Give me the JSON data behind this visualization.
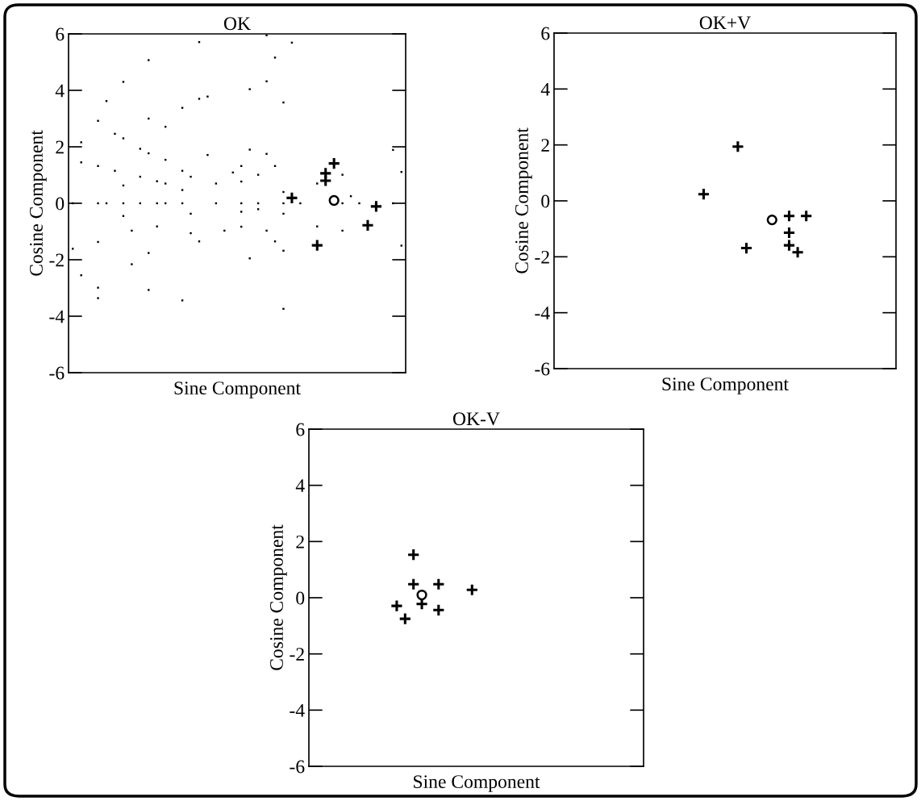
{
  "chart_data": [
    {
      "type": "scatter",
      "title": "OK",
      "xlabel": "Sine Component",
      "ylabel": "Cosine Component",
      "categories": [
        null,
        null,
        null,
        null,
        null,
        null,
        null,
        null,
        null,
        null,
        null,
        null,
        null,
        null,
        null,
        null,
        null,
        null,
        null,
        null,
        null,
        null,
        null,
        null,
        null,
        null,
        null,
        null,
        null,
        null,
        null,
        null,
        null,
        null,
        null,
        null,
        null,
        null,
        null,
        null
      ],
      "ylim": [
        -6,
        6
      ],
      "yticks": [
        -6,
        -4,
        -2,
        0,
        2,
        4,
        6
      ],
      "tick_labels": "y",
      "series": [
        {
          "color": "#000000",
          "marker": "square",
          "values": [
            0,
            2.16,
            null,
            0,
            0,
            2.46,
            0,
            -0.97,
            0,
            5.07,
            0,
            0,
            null,
            0,
            0.94,
            5.71,
            3.78,
            0,
            -0.97,
            1.09,
            0,
            4.04,
            0,
            5.95,
            5.16,
            0,
            5.69,
            0,
            null,
            0.7,
            null,
            null,
            0,
            0.25,
            0,
            null,
            null,
            null,
            0,
            1.11
          ]
        },
        {
          "color": "#000000",
          "marker": "square",
          "values": [
            -1.61,
            1.45,
            null,
            2.92,
            3.62,
            1.15,
            4.3,
            -2.16,
            1.93,
            3.0,
            0.78,
            2.71,
            null,
            3.38,
            -0.37,
            3.7,
            1.71,
            0.7,
            null,
            null,
            1.32,
            1.9,
            1.01,
            4.32,
            1.32,
            3.57,
            null,
            null,
            null,
            -0.82,
            null,
            null,
            1.01,
            null,
            null,
            null,
            null,
            null,
            1.89,
            -1.5
          ]
        },
        {
          "color": "#000000",
          "marker": "square",
          "values": [
            null,
            -2.55,
            null,
            1.32,
            null,
            null,
            2.3,
            null,
            0.94,
            1.77,
            -0.82,
            1.54,
            null,
            1.15,
            -1.06,
            -1.35,
            null,
            null,
            null,
            null,
            0.77,
            -1.95,
            -0.21,
            1.75,
            -1.35,
            0.4,
            null,
            null,
            null,
            null,
            null,
            null,
            -0.97,
            null,
            null,
            null,
            null,
            null,
            null,
            null
          ]
        },
        {
          "color": "#000000",
          "marker": "square",
          "values": [
            null,
            null,
            null,
            -1.37,
            null,
            null,
            0.63,
            null,
            null,
            -1.76,
            null,
            0.7,
            null,
            0.47,
            null,
            null,
            null,
            null,
            null,
            null,
            -0.3,
            null,
            null,
            -0.97,
            null,
            -0.37,
            null,
            null,
            null,
            null,
            null,
            null,
            null,
            null,
            null,
            null,
            null,
            null,
            null,
            null
          ]
        },
        {
          "color": "#000000",
          "marker": "square",
          "values": [
            null,
            null,
            null,
            -2.99,
            null,
            null,
            -0.45,
            null,
            null,
            -3.07,
            null,
            null,
            null,
            -3.44,
            null,
            null,
            null,
            null,
            null,
            null,
            -0.83,
            null,
            null,
            null,
            null,
            -1.68,
            null,
            null,
            null,
            null,
            null,
            null,
            null,
            null,
            null,
            null,
            null,
            null,
            null,
            null
          ]
        },
        {
          "color": "#000000",
          "marker": "square",
          "values": [
            null,
            null,
            null,
            -3.36,
            null,
            null,
            null,
            null,
            null,
            null,
            null,
            null,
            null,
            null,
            null,
            null,
            null,
            null,
            null,
            null,
            null,
            null,
            null,
            null,
            null,
            -3.74,
            null,
            null,
            null,
            null,
            null,
            null,
            null,
            null,
            null,
            null,
            null,
            null,
            null,
            null
          ]
        },
        {
          "color": "#000000",
          "marker": "cross",
          "values": [
            null,
            null,
            null,
            null,
            null,
            null,
            null,
            null,
            null,
            null,
            null,
            null,
            null,
            null,
            null,
            null,
            null,
            null,
            null,
            null,
            null,
            null,
            null,
            null,
            null,
            null,
            0.19,
            null,
            null,
            -1.49,
            1.06,
            1.41,
            null,
            null,
            null,
            -0.78,
            -0.11,
            null,
            null,
            null
          ]
        },
        {
          "color": "#000000",
          "marker": "cross",
          "values": [
            null,
            null,
            null,
            null,
            null,
            null,
            null,
            null,
            null,
            null,
            null,
            null,
            null,
            null,
            null,
            null,
            null,
            null,
            null,
            null,
            null,
            null,
            null,
            null,
            null,
            null,
            null,
            null,
            null,
            null,
            0.8,
            null,
            null,
            null,
            null,
            null,
            null,
            null,
            null,
            null
          ]
        },
        {
          "color": "#000000",
          "marker": "circle",
          "values": [
            null,
            null,
            null,
            null,
            null,
            null,
            null,
            null,
            null,
            null,
            null,
            null,
            null,
            null,
            null,
            null,
            null,
            null,
            null,
            null,
            null,
            null,
            null,
            null,
            null,
            null,
            null,
            null,
            null,
            null,
            null,
            0.1,
            null,
            null,
            null,
            null,
            null,
            null,
            null,
            null
          ]
        }
      ]
    },
    {
      "type": "scatter",
      "title": "OK+V",
      "xlabel": "Sine Component",
      "ylabel": "Cosine Component",
      "categories": [
        null,
        null,
        null,
        null,
        null,
        null,
        null,
        null,
        null,
        null,
        null,
        null,
        null,
        null,
        null,
        null,
        null,
        null,
        null,
        null,
        null,
        null,
        null,
        null,
        null,
        null,
        null,
        null,
        null,
        null,
        null,
        null,
        null,
        null,
        null,
        null,
        null,
        null,
        null,
        null
      ],
      "ylim": [
        -6,
        6
      ],
      "yticks": [
        -6,
        -4,
        -2,
        0,
        2,
        4,
        6
      ],
      "tick_labels": "y",
      "series": [
        {
          "color": "#000000",
          "marker": "cross",
          "values": [
            null,
            null,
            null,
            null,
            null,
            null,
            null,
            null,
            null,
            null,
            null,
            null,
            null,
            null,
            null,
            null,
            null,
            0.24,
            null,
            null,
            null,
            1.94,
            -1.69,
            null,
            null,
            null,
            null,
            -0.54,
            -1.84,
            -0.54,
            null,
            null,
            null,
            null,
            null,
            null,
            null,
            null,
            null,
            null
          ]
        },
        {
          "color": "#000000",
          "marker": "cross",
          "values": [
            null,
            null,
            null,
            null,
            null,
            null,
            null,
            null,
            null,
            null,
            null,
            null,
            null,
            null,
            null,
            null,
            null,
            null,
            null,
            null,
            null,
            null,
            null,
            null,
            null,
            null,
            null,
            -1.14,
            null,
            null,
            null,
            null,
            null,
            null,
            null,
            null,
            null,
            null,
            null,
            null
          ]
        },
        {
          "color": "#000000",
          "marker": "cross",
          "values": [
            null,
            null,
            null,
            null,
            null,
            null,
            null,
            null,
            null,
            null,
            null,
            null,
            null,
            null,
            null,
            null,
            null,
            null,
            null,
            null,
            null,
            null,
            null,
            null,
            null,
            null,
            null,
            -1.59,
            null,
            null,
            null,
            null,
            null,
            null,
            null,
            null,
            null,
            null,
            null,
            null
          ]
        },
        {
          "color": "#000000",
          "marker": "circle",
          "values": [
            null,
            null,
            null,
            null,
            null,
            null,
            null,
            null,
            null,
            null,
            null,
            null,
            null,
            null,
            null,
            null,
            null,
            null,
            null,
            null,
            null,
            null,
            null,
            null,
            null,
            -0.68,
            null,
            null,
            null,
            null,
            null,
            null,
            null,
            null,
            null,
            null,
            null,
            null,
            null,
            null
          ]
        }
      ]
    },
    {
      "type": "scatter",
      "title": "OK-V",
      "xlabel": "Sine Component",
      "ylabel": "Cosine Component",
      "categories": [
        null,
        null,
        null,
        null,
        null,
        null,
        null,
        null,
        null,
        null,
        null,
        null,
        null,
        null,
        null,
        null,
        null,
        null,
        null,
        null,
        null,
        null,
        null,
        null,
        null,
        null,
        null,
        null,
        null,
        null,
        null,
        null,
        null,
        null,
        null,
        null,
        null,
        null,
        null,
        null
      ],
      "ylim": [
        -6,
        6
      ],
      "yticks": [
        -6,
        -4,
        -2,
        0,
        2,
        4,
        6
      ],
      "tick_labels": "y",
      "series": [
        {
          "color": "#000000",
          "marker": "cross",
          "values": [
            null,
            null,
            null,
            null,
            null,
            null,
            null,
            null,
            null,
            null,
            -0.29,
            -0.75,
            1.53,
            -0.22,
            null,
            0.48,
            null,
            null,
            null,
            0.28,
            null,
            null,
            null,
            null,
            null,
            null,
            null,
            null,
            null,
            null,
            null,
            null,
            null,
            null,
            null,
            null,
            null,
            null,
            null,
            null
          ]
        },
        {
          "color": "#000000",
          "marker": "cross",
          "values": [
            null,
            null,
            null,
            null,
            null,
            null,
            null,
            null,
            null,
            null,
            null,
            null,
            0.48,
            null,
            null,
            -0.44,
            null,
            null,
            null,
            null,
            null,
            null,
            null,
            null,
            null,
            null,
            null,
            null,
            null,
            null,
            null,
            null,
            null,
            null,
            null,
            null,
            null,
            null,
            null,
            null
          ]
        },
        {
          "color": "#000000",
          "marker": "circle",
          "values": [
            null,
            null,
            null,
            null,
            null,
            null,
            null,
            null,
            null,
            null,
            null,
            null,
            null,
            0.1,
            null,
            null,
            null,
            null,
            null,
            null,
            null,
            null,
            null,
            null,
            null,
            null,
            null,
            null,
            null,
            null,
            null,
            null,
            null,
            null,
            null,
            null,
            null,
            null,
            null,
            null
          ]
        }
      ]
    }
  ]
}
